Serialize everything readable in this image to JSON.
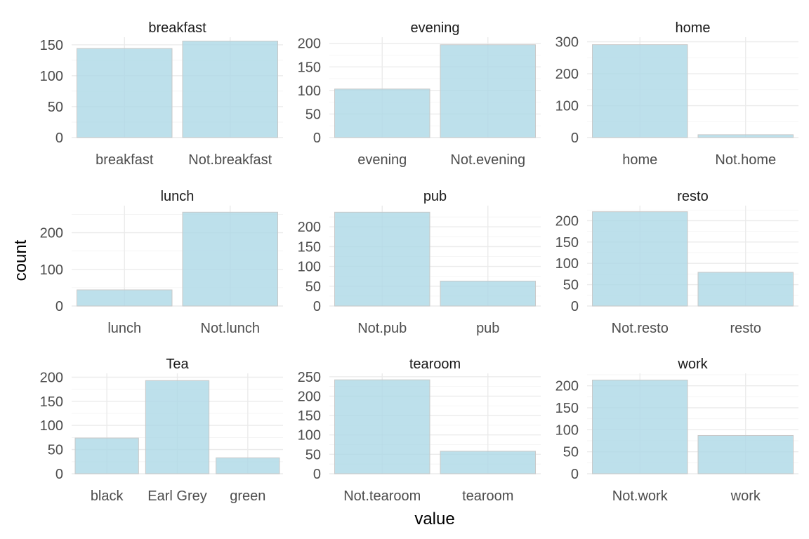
{
  "chart_data": {
    "type": "bar",
    "xlabel": "value",
    "ylabel": "count",
    "bar_color": "#add8e6",
    "grid": true,
    "facets": [
      {
        "title": "breakfast",
        "categories": [
          "breakfast",
          "Not.breakfast"
        ],
        "values": [
          144,
          156
        ],
        "ylim": [
          0,
          160
        ],
        "yticks": [
          0,
          50,
          100,
          150
        ]
      },
      {
        "title": "evening",
        "categories": [
          "evening",
          "Not.evening"
        ],
        "values": [
          103,
          197
        ],
        "ylim": [
          0,
          210
        ],
        "yticks": [
          0,
          50,
          100,
          150,
          200
        ]
      },
      {
        "title": "home",
        "categories": [
          "home",
          "Not.home"
        ],
        "values": [
          291,
          9
        ],
        "ylim": [
          0,
          310
        ],
        "yticks": [
          0,
          100,
          200,
          300
        ]
      },
      {
        "title": "lunch",
        "categories": [
          "lunch",
          "Not.lunch"
        ],
        "values": [
          44,
          256
        ],
        "ylim": [
          0,
          270
        ],
        "yticks": [
          0,
          100,
          200
        ]
      },
      {
        "title": "pub",
        "categories": [
          "Not.pub",
          "pub"
        ],
        "values": [
          237,
          63
        ],
        "ylim": [
          0,
          250
        ],
        "yticks": [
          0,
          50,
          100,
          150,
          200
        ]
      },
      {
        "title": "resto",
        "categories": [
          "Not.resto",
          "resto"
        ],
        "values": [
          221,
          79
        ],
        "ylim": [
          0,
          232
        ],
        "yticks": [
          0,
          50,
          100,
          150,
          200
        ]
      },
      {
        "title": "Tea",
        "categories": [
          "black",
          "Earl Grey",
          "green"
        ],
        "values": [
          74,
          193,
          33
        ],
        "ylim": [
          0,
          205
        ],
        "yticks": [
          0,
          50,
          100,
          150,
          200
        ]
      },
      {
        "title": "tearoom",
        "categories": [
          "Not.tearoom",
          "tearoom"
        ],
        "values": [
          242,
          58
        ],
        "ylim": [
          0,
          255
        ],
        "yticks": [
          0,
          50,
          100,
          150,
          200,
          250
        ]
      },
      {
        "title": "work",
        "categories": [
          "Not.work",
          "work"
        ],
        "values": [
          213,
          87
        ],
        "ylim": [
          0,
          225
        ],
        "yticks": [
          0,
          50,
          100,
          150,
          200
        ]
      }
    ]
  }
}
